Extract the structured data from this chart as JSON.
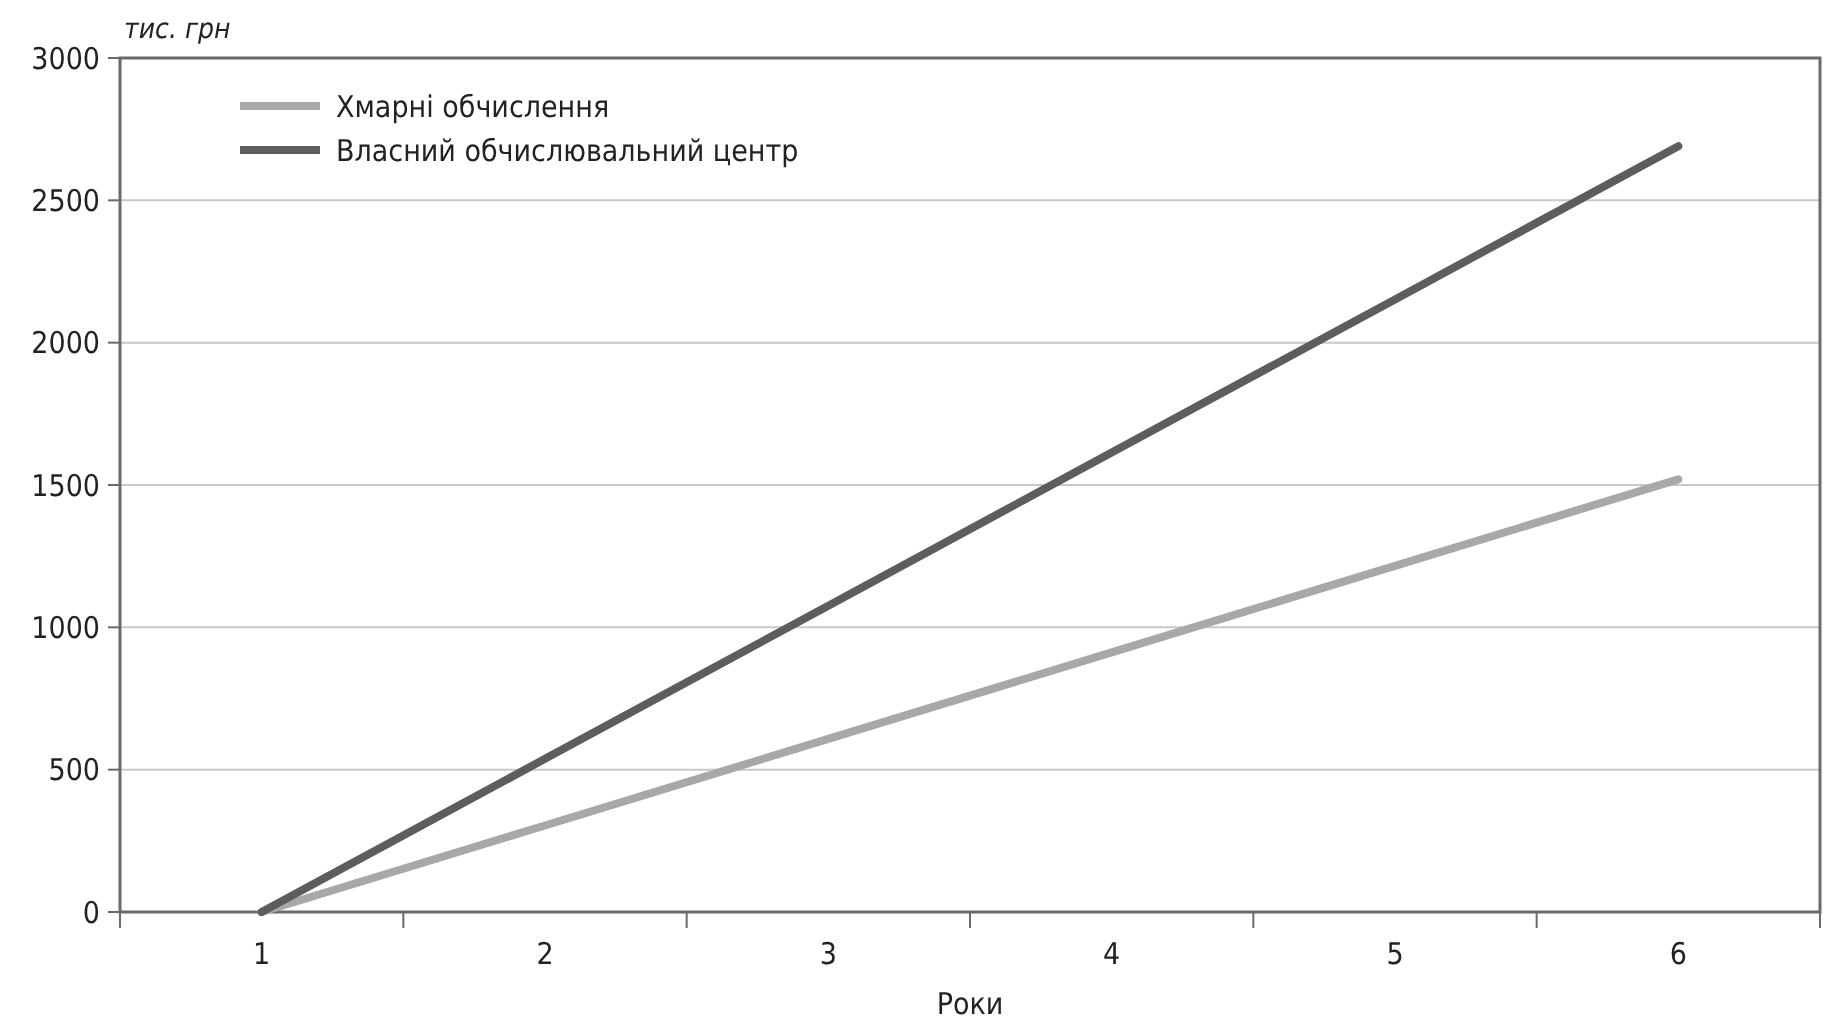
{
  "chart_data": {
    "type": "line",
    "ylabel": "тис. грн",
    "xlabel": "Роки",
    "categories": [
      "1",
      "2",
      "3",
      "4",
      "5",
      "6"
    ],
    "series": [
      {
        "name": "Хмарні обчислення",
        "color": "#a6a8aa",
        "values": [
          0,
          304,
          608,
          912,
          1216,
          1520
        ]
      },
      {
        "name": "Власний обчислювальний центр",
        "color": "#5b5d5f",
        "values": [
          0,
          538,
          1076,
          1614,
          2152,
          2690
        ]
      }
    ],
    "ylim": [
      0,
      3000
    ],
    "yticks": [
      0,
      500,
      1000,
      1500,
      2000,
      2500,
      3000
    ],
    "grid": "y",
    "legend": "top left",
    "marker": "none",
    "line_style": "solid"
  }
}
